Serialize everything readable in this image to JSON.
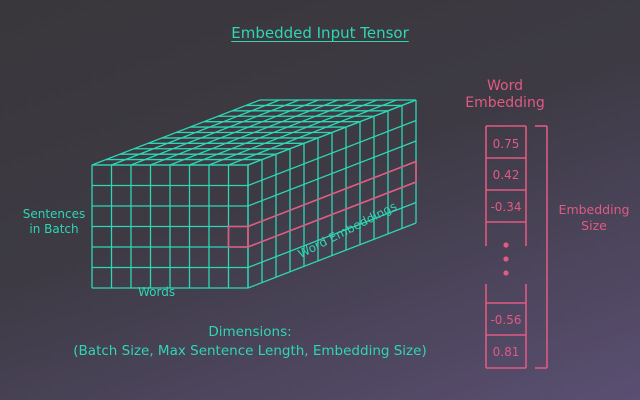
{
  "title": "Embedded Input Tensor",
  "dimensions": {
    "heading": "Dimensions:",
    "detail": "(Batch Size, Max Sentence Length, Embedding Size)"
  },
  "axes": {
    "sentences_line1": "Sentences",
    "sentences_line2": "in Batch",
    "words": "Words",
    "word_embeddings": "Word Embeddings"
  },
  "word_embedding": {
    "heading_line1": "Word",
    "heading_line2": "Embedding",
    "size_line1": "Embedding",
    "size_line2": "Size",
    "top_values": [
      "0.75",
      "0.42",
      "-0.34"
    ],
    "bottom_values": [
      "-0.56",
      "0.81"
    ]
  },
  "colors": {
    "teal": "#2ed6b4",
    "pink": "#e05a82",
    "background_top": "#39373b",
    "background_bottom": "#5a4f72"
  }
}
